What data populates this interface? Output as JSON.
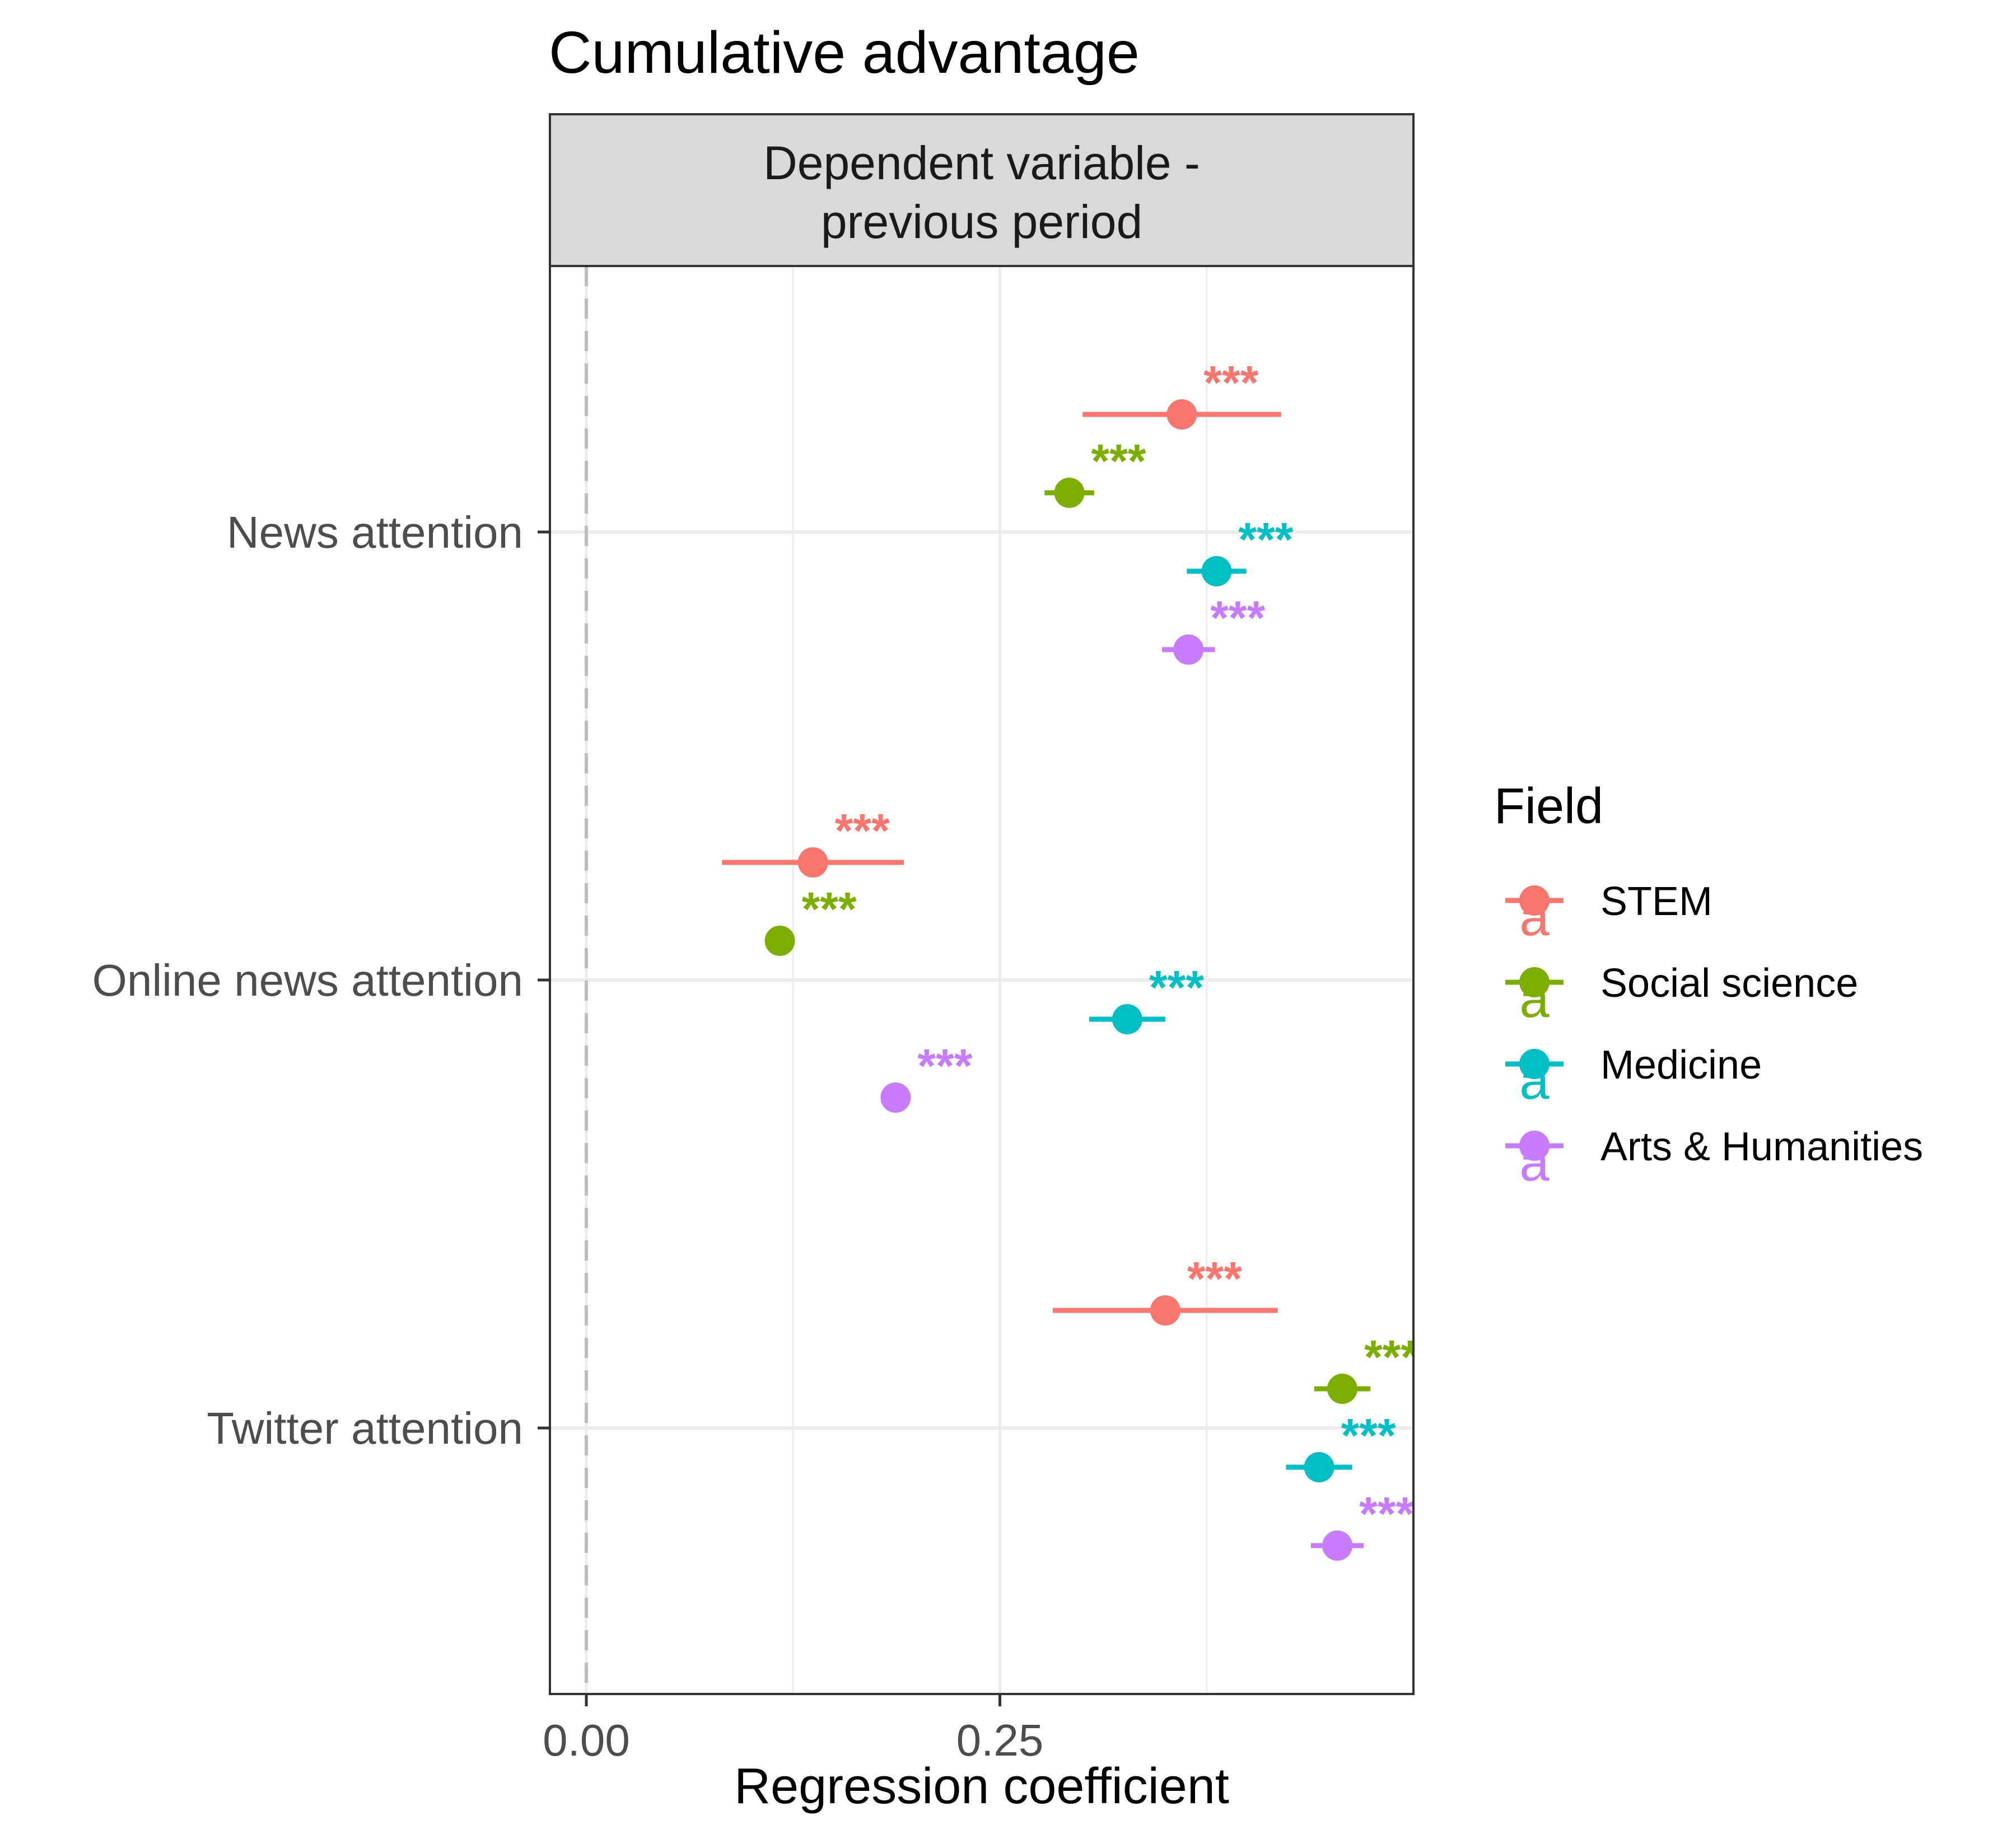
{
  "chart_data": {
    "type": "scatter",
    "title": "Cumulative advantage",
    "facet_label": "Dependent variable -\nprevious period",
    "xlabel": "Regression coefficient",
    "ylabel": "",
    "xlim": [
      -0.022,
      0.5
    ],
    "x_ticks": [
      "0.00",
      "0.25"
    ],
    "x_tick_values": [
      0.0,
      0.25
    ],
    "reference_line_x": 0,
    "grid": true,
    "categories": [
      "News attention",
      "Online news attention",
      "Twitter attention"
    ],
    "legend": {
      "title": "Field",
      "position": "right"
    },
    "significance_label": "***",
    "series": [
      {
        "name": "STEM",
        "color": "#F8766D",
        "points": [
          {
            "category": "News attention",
            "estimate": 0.36,
            "ci_low": 0.3,
            "ci_high": 0.42
          },
          {
            "category": "Online news attention",
            "estimate": 0.137,
            "ci_low": 0.082,
            "ci_high": 0.192
          },
          {
            "category": "Twitter attention",
            "estimate": 0.35,
            "ci_low": 0.282,
            "ci_high": 0.418
          }
        ]
      },
      {
        "name": "Social science",
        "color": "#7CAE00",
        "points": [
          {
            "category": "News attention",
            "estimate": 0.292,
            "ci_low": 0.277,
            "ci_high": 0.307
          },
          {
            "category": "Online news attention",
            "estimate": 0.117,
            "ci_low": 0.108,
            "ci_high": 0.126
          },
          {
            "category": "Twitter attention",
            "estimate": 0.457,
            "ci_low": 0.44,
            "ci_high": 0.474
          }
        ]
      },
      {
        "name": "Medicine",
        "color": "#00BFC4",
        "points": [
          {
            "category": "News attention",
            "estimate": 0.381,
            "ci_low": 0.363,
            "ci_high": 0.399
          },
          {
            "category": "Online news attention",
            "estimate": 0.327,
            "ci_low": 0.304,
            "ci_high": 0.35
          },
          {
            "category": "Twitter attention",
            "estimate": 0.443,
            "ci_low": 0.423,
            "ci_high": 0.463
          }
        ]
      },
      {
        "name": "Arts & Humanities",
        "color": "#C77CFF",
        "points": [
          {
            "category": "News attention",
            "estimate": 0.364,
            "ci_low": 0.348,
            "ci_high": 0.38
          },
          {
            "category": "Online news attention",
            "estimate": 0.187,
            "ci_low": 0.178,
            "ci_high": 0.196
          },
          {
            "category": "Twitter attention",
            "estimate": 0.454,
            "ci_low": 0.438,
            "ci_high": 0.47
          }
        ]
      }
    ]
  }
}
